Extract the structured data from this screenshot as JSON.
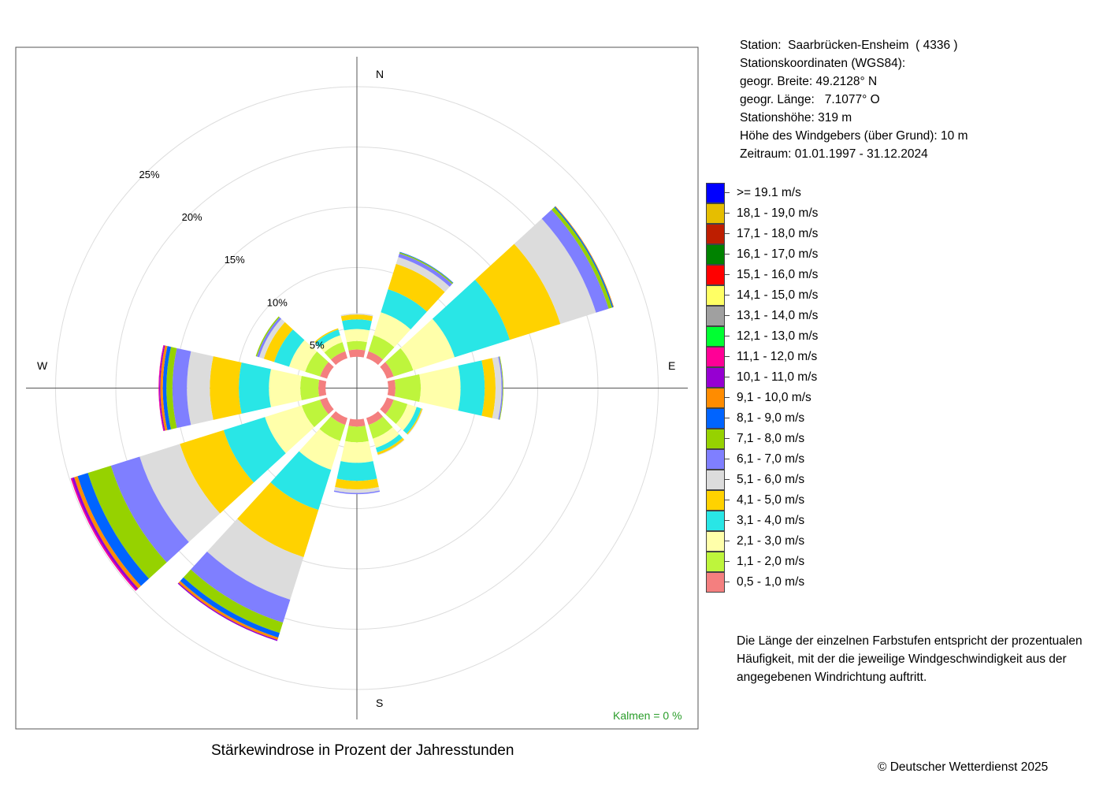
{
  "station_info": {
    "station": "Station:  Saarbrücken-Ensheim  ( 4336 )",
    "coords_header": "Stationskoordinaten (WGS84):",
    "lat": "geogr. Breite: 49.2128° N",
    "lon": "geogr. Länge:   7.1077° O",
    "height": "Stationshöhe: 319 m",
    "anemometer": "Höhe des Windgebers (über Grund): 10 m",
    "period": "Zeitraum: 01.01.1997 - 31.12.2024"
  },
  "note": {
    "line1": "Die Länge der einzelnen Farbstufen entspricht der prozentualen",
    "line2": "Häufigkeit, mit der die jeweilige Windgeschwindigkeit aus der",
    "line3": "angegebenen Windrichtung auftritt."
  },
  "copyright": "© Deutscher Wetterdienst  2025",
  "chart_data": {
    "type": "wind_rose",
    "title": "Stärkewindrose in Prozent der Jahresstunden",
    "calm_label": "Kalmen  =  0 %",
    "directions_deg": [
      0,
      30,
      60,
      90,
      120,
      150,
      180,
      210,
      240,
      270,
      300,
      330
    ],
    "compass_labels": {
      "north": "N",
      "east": "E",
      "south": "S",
      "west": "W"
    },
    "ring_labels": [
      "5%",
      "10%",
      "15%",
      "20%",
      "25%"
    ],
    "ring_values": [
      5,
      10,
      15,
      20,
      25
    ],
    "inner_radius_pct": 2.6,
    "speed_classes": [
      {
        "label": "0,5 - 1,0 m/s",
        "color": "#F47F7F"
      },
      {
        "label": "1,1 - 2,0 m/s",
        "color": "#BEF53C"
      },
      {
        "label": "2,1 - 3,0 m/s",
        "color": "#FFFFAA"
      },
      {
        "label": "3,1 - 4,0 m/s",
        "color": "#29E6E6"
      },
      {
        "label": "4,1 - 5,0 m/s",
        "color": "#FFD200"
      },
      {
        "label": "5,1 - 6,0 m/s",
        "color": "#DCDCDC"
      },
      {
        "label": "6,1 - 7,0 m/s",
        "color": "#7F7FFF"
      },
      {
        "label": "7,1 - 8,0 m/s",
        "color": "#96D200"
      },
      {
        "label": "8,1 - 9,0 m/s",
        "color": "#0064FF"
      },
      {
        "label": "9,1 - 10,0 m/s",
        "color": "#FF8C00"
      },
      {
        "label": "10,1 - 11,0 m/s",
        "color": "#9600D2"
      },
      {
        "label": "11,1 - 12,0 m/s",
        "color": "#FF0096"
      },
      {
        "label": "12,1 - 13,0 m/s",
        "color": "#00FF32"
      },
      {
        "label": "13,1 - 14,0 m/s",
        "color": "#A0A0A0"
      },
      {
        "label": "14,1 - 15,0 m/s",
        "color": "#FFFF64"
      },
      {
        "label": "15,1 - 16,0 m/s",
        "color": "#FF0000"
      },
      {
        "label": "16,1 - 17,0 m/s",
        "color": "#008200"
      },
      {
        "label": "17,1 - 18,0 m/s",
        "color": "#BE1E00"
      },
      {
        "label": "18,1 - 19,0 m/s",
        "color": "#E6BE00"
      },
      {
        "label": ">= 19.1 m/s",
        "color": "#0000FF"
      }
    ],
    "series": [
      {
        "direction": 0,
        "values": [
          0.6,
          0.7,
          1.0,
          0.8,
          0.4,
          0.1
        ]
      },
      {
        "direction": 30,
        "values": [
          0.6,
          1.4,
          2.0,
          2.0,
          2.2,
          0.6,
          0.3,
          0.1,
          0.05
        ]
      },
      {
        "direction": 60,
        "values": [
          0.6,
          1.7,
          3.6,
          4.8,
          4.4,
          3.1,
          1.1,
          0.3,
          0.1,
          0.05
        ]
      },
      {
        "direction": 90,
        "values": [
          0.6,
          2.1,
          3.3,
          2.0,
          0.9,
          0.5,
          0.1,
          0.05
        ]
      },
      {
        "direction": 120,
        "values": [
          0.6,
          1.2,
          0.8,
          0.4,
          0.1,
          0.05
        ]
      },
      {
        "direction": 150,
        "values": [
          0.6,
          1.2,
          0.8,
          0.4,
          0.2,
          0.05
        ]
      },
      {
        "direction": 180,
        "values": [
          0.6,
          1.3,
          1.7,
          1.5,
          0.7,
          0.3,
          0.1
        ]
      },
      {
        "direction": 210,
        "values": [
          0.6,
          1.4,
          2.5,
          3.5,
          4.1,
          3.7,
          2.0,
          0.9,
          0.4,
          0.2,
          0.1
        ]
      },
      {
        "direction": 240,
        "values": [
          0.6,
          1.6,
          3.2,
          3.6,
          3.8,
          3.5,
          2.5,
          2.0,
          0.9,
          0.3,
          0.2,
          0.1
        ]
      },
      {
        "direction": 270,
        "values": [
          0.6,
          1.5,
          2.6,
          2.5,
          2.4,
          1.9,
          1.2,
          0.5,
          0.3,
          0.2,
          0.1,
          0.05
        ]
      },
      {
        "direction": 300,
        "values": [
          0.6,
          1.3,
          1.4,
          1.3,
          0.9,
          0.4,
          0.2,
          0.1
        ]
      },
      {
        "direction": 330,
        "values": [
          0.6,
          0.8,
          0.6,
          0.5,
          0.1
        ]
      }
    ]
  }
}
